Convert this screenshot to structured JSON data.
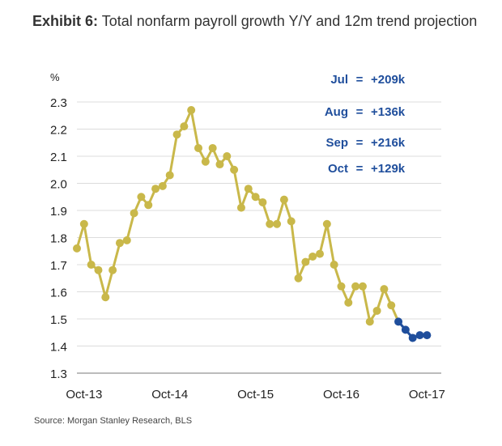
{
  "title": {
    "exhibit": "Exhibit 6:",
    "text": "Total nonfarm payroll growth Y/Y and 12m trend projection"
  },
  "chart_data": {
    "type": "line",
    "ylabel": "%",
    "ylim": [
      1.3,
      2.3
    ],
    "yticks": [
      "2.3",
      "2.2",
      "2.1",
      "2.0",
      "1.9",
      "1.8",
      "1.7",
      "1.6",
      "1.5",
      "1.4",
      "1.3"
    ],
    "xticks": [
      "Oct-13",
      "Oct-14",
      "Oct-15",
      "Oct-16",
      "Oct-17"
    ],
    "grid": true,
    "series": [
      {
        "color": "#c9b84a",
        "x": [
          "2013-09",
          "2013-10",
          "2013-11",
          "2013-12",
          "2014-01",
          "2014-02",
          "2014-03",
          "2014-04",
          "2014-05",
          "2014-06",
          "2014-07",
          "2014-08",
          "2014-09",
          "2014-10",
          "2014-11",
          "2014-12",
          "2015-01",
          "2015-02",
          "2015-03",
          "2015-04",
          "2015-05",
          "2015-06",
          "2015-07",
          "2015-08",
          "2015-09",
          "2015-10",
          "2015-11",
          "2015-12",
          "2016-01",
          "2016-02",
          "2016-03",
          "2016-04",
          "2016-05",
          "2016-06",
          "2016-07",
          "2016-08",
          "2016-09",
          "2016-10",
          "2016-11",
          "2016-12",
          "2017-01",
          "2017-02",
          "2017-03",
          "2017-04",
          "2017-05",
          "2017-06"
        ],
        "values": [
          1.76,
          1.85,
          1.7,
          1.68,
          1.58,
          1.68,
          1.78,
          1.79,
          1.89,
          1.95,
          1.92,
          1.98,
          1.99,
          2.03,
          2.18,
          2.21,
          2.27,
          2.13,
          2.08,
          2.13,
          2.07,
          2.1,
          2.05,
          1.91,
          1.98,
          1.95,
          1.93,
          1.85,
          1.85,
          1.94,
          1.86,
          1.65,
          1.71,
          1.73,
          1.74,
          1.85,
          1.7,
          1.62,
          1.56,
          1.62,
          1.62,
          1.49,
          1.53,
          1.61,
          1.55,
          1.49
        ]
      },
      {
        "color": "#1f4e9c",
        "x": [
          "2017-06",
          "2017-07",
          "2017-08",
          "2017-09",
          "2017-10"
        ],
        "values": [
          1.49,
          1.46,
          1.43,
          1.44,
          1.44
        ]
      }
    ],
    "annotations": [
      {
        "month": "Jul",
        "value": "+209k"
      },
      {
        "month": "Aug",
        "value": "+136k"
      },
      {
        "month": "Sep",
        "value": "+216k"
      },
      {
        "month": "Oct",
        "value": "+129k"
      }
    ],
    "annotation_sep": "=",
    "annotation_color": "#1f4e9c"
  },
  "source": "Source: Morgan Stanley Research, BLS"
}
